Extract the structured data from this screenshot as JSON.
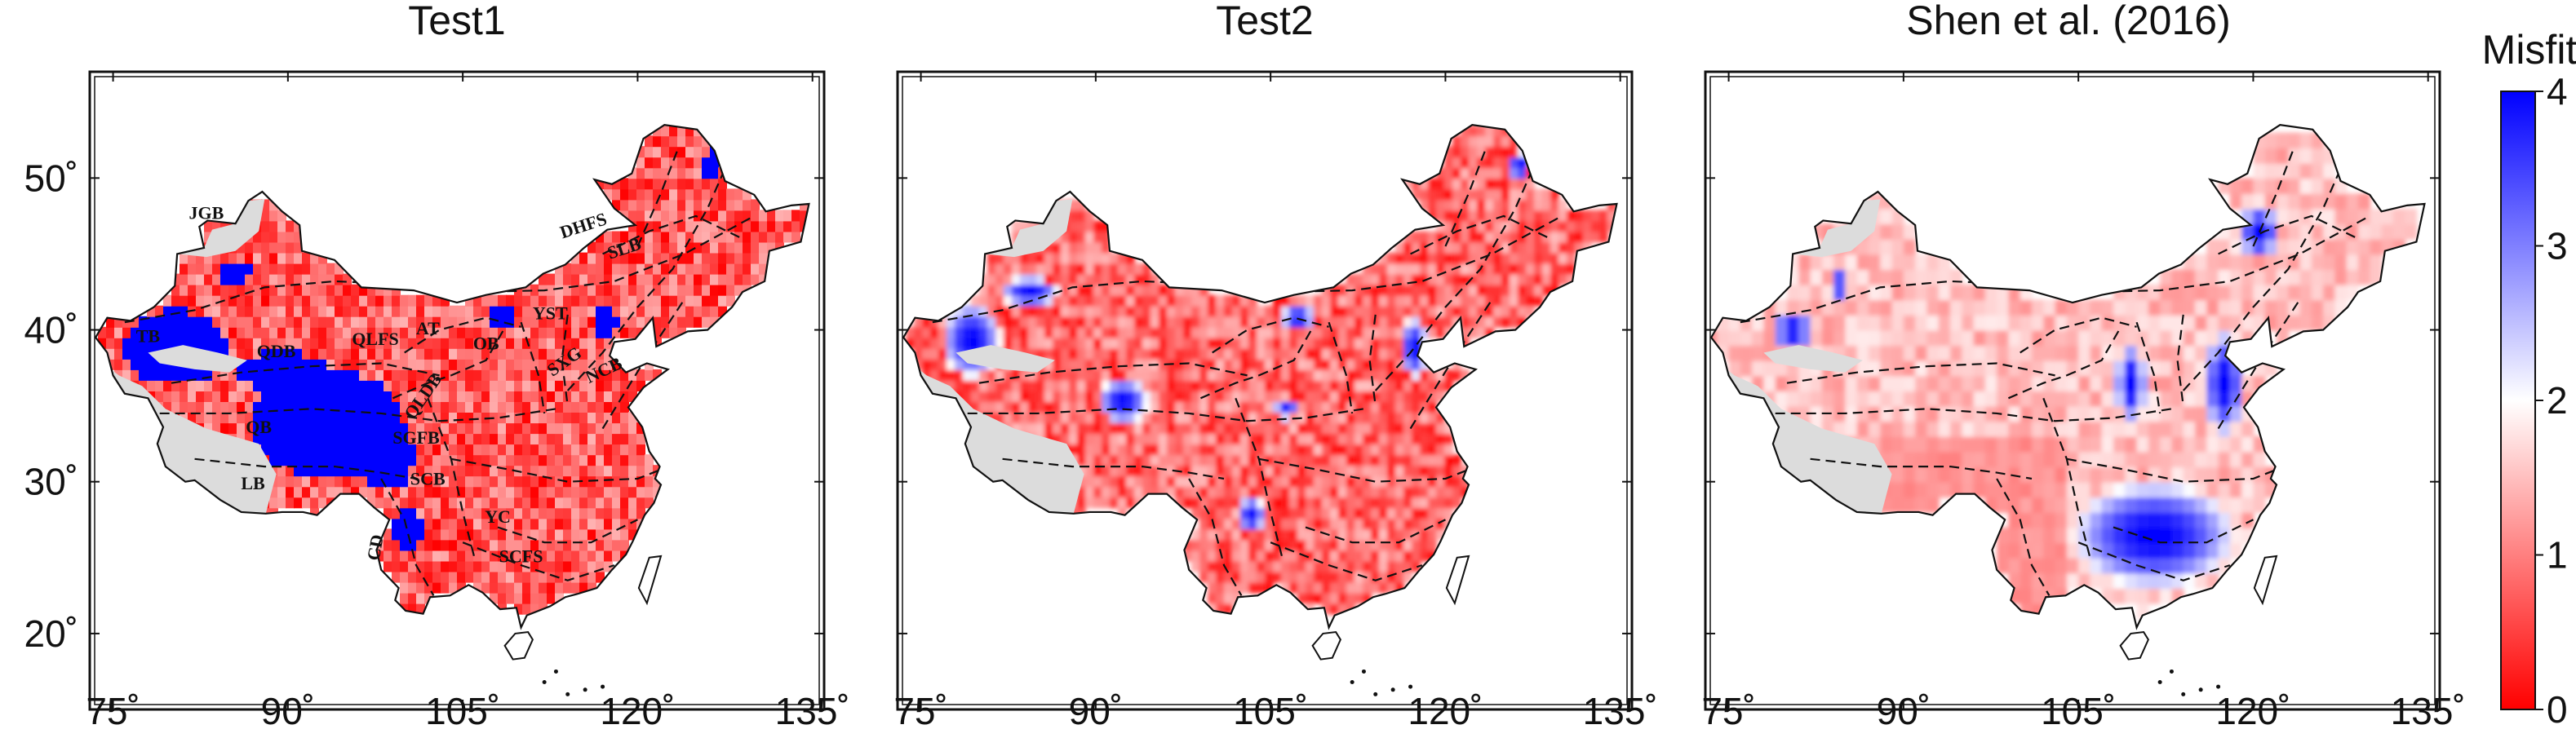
{
  "panels": [
    {
      "title": "Test1",
      "mode": "test1",
      "show_y_labels": true,
      "show_regions": true
    },
    {
      "title": "Test2",
      "mode": "test2",
      "show_y_labels": false,
      "show_regions": false
    },
    {
      "title": "Shen et al. (2016)",
      "mode": "shen",
      "show_y_labels": false,
      "show_regions": false
    }
  ],
  "x_ticks": [
    "75˚",
    "90˚",
    "105˚",
    "120˚",
    "135˚"
  ],
  "x_tick_values": [
    75,
    90,
    105,
    120,
    135
  ],
  "y_ticks": [
    "50˚",
    "40˚",
    "30˚",
    "20˚"
  ],
  "y_tick_values": [
    50,
    40,
    30,
    20
  ],
  "lon_range": [
    73,
    136
  ],
  "lat_range": [
    15,
    57
  ],
  "colorbar": {
    "label": "Misfit",
    "ticks": [
      "0",
      "1",
      "2",
      "3",
      "4"
    ],
    "range": [
      0,
      4
    ],
    "colors": {
      "low": "#ff0000",
      "mid": "#ffffff",
      "high": "#0000ff"
    }
  },
  "region_labels": [
    "JGB",
    "TB",
    "QDB",
    "QLFS",
    "AT",
    "OB",
    "YST",
    "DHFS",
    "SLB",
    "NCB",
    "SXG",
    "QB",
    "LB",
    "SGFB",
    "SCB",
    "YC",
    "SCFS",
    "CD",
    "QLDB"
  ],
  "colors": {
    "no_data": "#dcdcdc",
    "coast": "#111111",
    "block_boundary": "#111111"
  }
}
